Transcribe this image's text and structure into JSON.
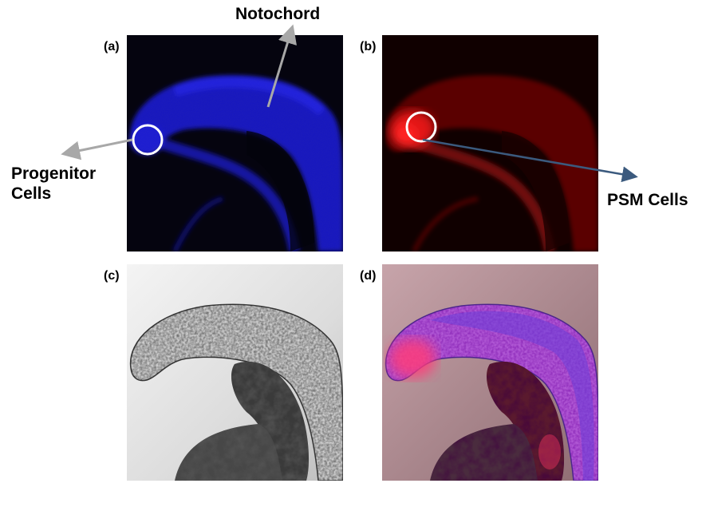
{
  "panel_labels": {
    "a": "(a)",
    "b": "(b)",
    "c": "(c)",
    "d": "(d)"
  },
  "annotations": {
    "notochord": "Notochord",
    "progenitor_line1": "Progenitor",
    "progenitor_line2": "Cells",
    "psm": "PSM Cells"
  },
  "colors": {
    "blue_channel": "#1a1ad0",
    "red_channel": "#d01010",
    "progenitor_arrow": "#a8a8a8",
    "psm_arrow": "#3b5a7e",
    "circle": "#ffffff"
  }
}
